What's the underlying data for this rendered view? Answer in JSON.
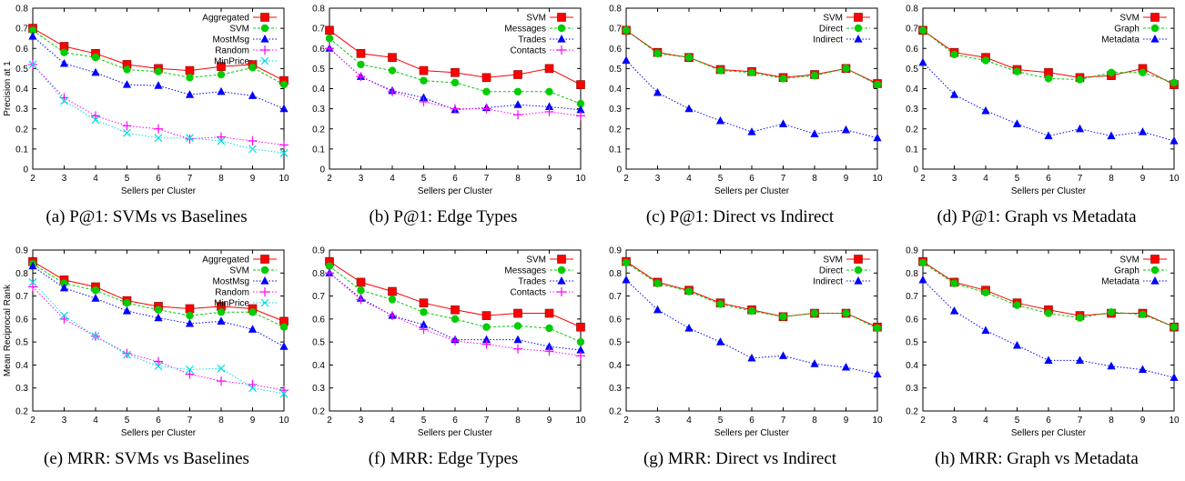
{
  "chart_data": [
    {
      "type": "line",
      "caption": "(a) P@1: SVMs vs Baselines",
      "xlabel": "Sellers per Cluster",
      "ylabel": "Precision at 1",
      "x": [
        2,
        3,
        4,
        5,
        6,
        7,
        8,
        9,
        10
      ],
      "xlim": [
        2,
        10
      ],
      "ylim": [
        0,
        0.8
      ],
      "yticks": [
        "0",
        "0.1",
        "0.2",
        "0.3",
        "0.4",
        "0.5",
        "0.6",
        "0.7",
        "0.8"
      ],
      "legend": "top-right",
      "series": [
        {
          "name": "Aggregated",
          "color": "#ff0000",
          "marker": "square",
          "values": [
            0.7,
            0.61,
            0.575,
            0.52,
            0.5,
            0.49,
            0.51,
            0.52,
            0.44
          ]
        },
        {
          "name": "SVM",
          "color": "#00cc00",
          "marker": "circle",
          "values": [
            0.69,
            0.58,
            0.555,
            0.495,
            0.485,
            0.455,
            0.47,
            0.505,
            0.42
          ]
        },
        {
          "name": "MostMsg",
          "color": "#0000ff",
          "marker": "triangle",
          "values": [
            0.66,
            0.525,
            0.48,
            0.42,
            0.415,
            0.37,
            0.385,
            0.365,
            0.3
          ]
        },
        {
          "name": "Random",
          "color": "#ff00ff",
          "marker": "plus",
          "values": [
            0.52,
            0.355,
            0.265,
            0.215,
            0.2,
            0.15,
            0.16,
            0.14,
            0.12
          ]
        },
        {
          "name": "MinPrice",
          "color": "#00dddd",
          "marker": "x",
          "values": [
            0.52,
            0.34,
            0.245,
            0.18,
            0.155,
            0.155,
            0.14,
            0.1,
            0.08
          ]
        }
      ]
    },
    {
      "type": "line",
      "caption": "(b) P@1: Edge Types",
      "xlabel": "Sellers per Cluster",
      "ylabel": "",
      "x": [
        2,
        3,
        4,
        5,
        6,
        7,
        8,
        9,
        10
      ],
      "xlim": [
        2,
        10
      ],
      "ylim": [
        0,
        0.8
      ],
      "yticks": [
        "0",
        "0.1",
        "0.2",
        "0.3",
        "0.4",
        "0.5",
        "0.6",
        "0.7",
        "0.8"
      ],
      "legend": "top-right",
      "series": [
        {
          "name": "SVM",
          "color": "#ff0000",
          "marker": "square",
          "values": [
            0.69,
            0.575,
            0.555,
            0.49,
            0.48,
            0.455,
            0.47,
            0.5,
            0.42
          ]
        },
        {
          "name": "Messages",
          "color": "#00cc00",
          "marker": "circle",
          "values": [
            0.65,
            0.52,
            0.49,
            0.44,
            0.43,
            0.385,
            0.385,
            0.385,
            0.325
          ]
        },
        {
          "name": "Trades",
          "color": "#0000ff",
          "marker": "triangle",
          "values": [
            0.6,
            0.46,
            0.39,
            0.355,
            0.295,
            0.305,
            0.32,
            0.31,
            0.295
          ]
        },
        {
          "name": "Contacts",
          "color": "#ff00ff",
          "marker": "plus",
          "values": [
            0.6,
            0.46,
            0.385,
            0.335,
            0.3,
            0.3,
            0.27,
            0.285,
            0.265
          ]
        }
      ]
    },
    {
      "type": "line",
      "caption": "(c) P@1: Direct vs Indirect",
      "xlabel": "Sellers per Cluster",
      "ylabel": "",
      "x": [
        2,
        3,
        4,
        5,
        6,
        7,
        8,
        9,
        10
      ],
      "xlim": [
        2,
        10
      ],
      "ylim": [
        0,
        0.8
      ],
      "yticks": [
        "0",
        "0.1",
        "0.2",
        "0.3",
        "0.4",
        "0.5",
        "0.6",
        "0.7",
        "0.8"
      ],
      "legend": "top-right",
      "series": [
        {
          "name": "SVM",
          "color": "#ff0000",
          "marker": "square",
          "values": [
            0.69,
            0.58,
            0.555,
            0.495,
            0.485,
            0.455,
            0.47,
            0.5,
            0.425
          ]
        },
        {
          "name": "Direct",
          "color": "#00cc00",
          "marker": "circle",
          "values": [
            0.69,
            0.575,
            0.555,
            0.49,
            0.48,
            0.45,
            0.465,
            0.5,
            0.42
          ]
        },
        {
          "name": "Indirect",
          "color": "#0000ff",
          "marker": "triangle",
          "values": [
            0.54,
            0.38,
            0.3,
            0.24,
            0.185,
            0.225,
            0.175,
            0.195,
            0.155
          ]
        }
      ]
    },
    {
      "type": "line",
      "caption": "(d) P@1: Graph vs Metadata",
      "xlabel": "Sellers per Cluster",
      "ylabel": "",
      "x": [
        2,
        3,
        4,
        5,
        6,
        7,
        8,
        9,
        10
      ],
      "xlim": [
        2,
        10
      ],
      "ylim": [
        0,
        0.8
      ],
      "yticks": [
        "0",
        "0.1",
        "0.2",
        "0.3",
        "0.4",
        "0.5",
        "0.6",
        "0.7",
        "0.8"
      ],
      "legend": "top-right",
      "series": [
        {
          "name": "SVM",
          "color": "#ff0000",
          "marker": "square",
          "values": [
            0.69,
            0.58,
            0.555,
            0.495,
            0.48,
            0.455,
            0.465,
            0.5,
            0.42
          ]
        },
        {
          "name": "Graph",
          "color": "#00cc00",
          "marker": "circle",
          "values": [
            0.69,
            0.57,
            0.54,
            0.485,
            0.45,
            0.445,
            0.48,
            0.48,
            0.43
          ]
        },
        {
          "name": "Metadata",
          "color": "#0000ff",
          "marker": "triangle",
          "values": [
            0.53,
            0.37,
            0.29,
            0.225,
            0.165,
            0.2,
            0.165,
            0.185,
            0.14
          ]
        }
      ]
    },
    {
      "type": "line",
      "caption": "(e) MRR: SVMs vs Baselines",
      "xlabel": "Sellers per Cluster",
      "ylabel": "Mean Reciprocal Rank",
      "x": [
        2,
        3,
        4,
        5,
        6,
        7,
        8,
        9,
        10
      ],
      "xlim": [
        2,
        10
      ],
      "ylim": [
        0.2,
        0.9
      ],
      "yticks": [
        "0.2",
        "0.3",
        "0.4",
        "0.5",
        "0.6",
        "0.7",
        "0.8",
        "0.9"
      ],
      "legend": "top-right",
      "series": [
        {
          "name": "Aggregated",
          "color": "#ff0000",
          "marker": "square",
          "values": [
            0.85,
            0.77,
            0.74,
            0.68,
            0.655,
            0.645,
            0.655,
            0.645,
            0.59
          ]
        },
        {
          "name": "SVM",
          "color": "#00cc00",
          "marker": "circle",
          "values": [
            0.84,
            0.755,
            0.725,
            0.67,
            0.64,
            0.615,
            0.63,
            0.63,
            0.565
          ]
        },
        {
          "name": "MostMsg",
          "color": "#0000ff",
          "marker": "triangle",
          "values": [
            0.83,
            0.735,
            0.69,
            0.635,
            0.605,
            0.58,
            0.59,
            0.555,
            0.48
          ]
        },
        {
          "name": "Random",
          "color": "#ff00ff",
          "marker": "plus",
          "values": [
            0.74,
            0.6,
            0.525,
            0.45,
            0.415,
            0.36,
            0.33,
            0.315,
            0.29
          ]
        },
        {
          "name": "MinPrice",
          "color": "#00dddd",
          "marker": "x",
          "values": [
            0.76,
            0.615,
            0.525,
            0.445,
            0.395,
            0.38,
            0.385,
            0.3,
            0.275
          ]
        }
      ]
    },
    {
      "type": "line",
      "caption": "(f) MRR: Edge Types",
      "xlabel": "Sellers per Cluster",
      "ylabel": "",
      "x": [
        2,
        3,
        4,
        5,
        6,
        7,
        8,
        9,
        10
      ],
      "xlim": [
        2,
        10
      ],
      "ylim": [
        0.2,
        0.9
      ],
      "yticks": [
        "0.2",
        "0.3",
        "0.4",
        "0.5",
        "0.6",
        "0.7",
        "0.8",
        "0.9"
      ],
      "legend": "top-right",
      "series": [
        {
          "name": "SVM",
          "color": "#ff0000",
          "marker": "square",
          "values": [
            0.85,
            0.76,
            0.72,
            0.67,
            0.64,
            0.615,
            0.625,
            0.625,
            0.565
          ]
        },
        {
          "name": "Messages",
          "color": "#00cc00",
          "marker": "circle",
          "values": [
            0.83,
            0.725,
            0.685,
            0.63,
            0.6,
            0.565,
            0.57,
            0.56,
            0.5
          ]
        },
        {
          "name": "Trades",
          "color": "#0000ff",
          "marker": "triangle",
          "values": [
            0.8,
            0.69,
            0.615,
            0.575,
            0.51,
            0.51,
            0.51,
            0.48,
            0.465
          ]
        },
        {
          "name": "Contacts",
          "color": "#ff00ff",
          "marker": "plus",
          "values": [
            0.8,
            0.685,
            0.615,
            0.555,
            0.505,
            0.49,
            0.47,
            0.46,
            0.44
          ]
        }
      ]
    },
    {
      "type": "line",
      "caption": "(g) MRR: Direct vs Indirect",
      "xlabel": "Sellers per Cluster",
      "ylabel": "",
      "x": [
        2,
        3,
        4,
        5,
        6,
        7,
        8,
        9,
        10
      ],
      "xlim": [
        2,
        10
      ],
      "ylim": [
        0.2,
        0.9
      ],
      "yticks": [
        "0.2",
        "0.3",
        "0.4",
        "0.5",
        "0.6",
        "0.7",
        "0.8",
        "0.9"
      ],
      "legend": "top-right",
      "series": [
        {
          "name": "SVM",
          "color": "#ff0000",
          "marker": "square",
          "values": [
            0.85,
            0.76,
            0.725,
            0.67,
            0.64,
            0.61,
            0.625,
            0.625,
            0.565
          ]
        },
        {
          "name": "Direct",
          "color": "#00cc00",
          "marker": "circle",
          "values": [
            0.845,
            0.755,
            0.72,
            0.665,
            0.635,
            0.61,
            0.625,
            0.625,
            0.56
          ]
        },
        {
          "name": "Indirect",
          "color": "#0000ff",
          "marker": "triangle",
          "values": [
            0.77,
            0.64,
            0.56,
            0.5,
            0.43,
            0.44,
            0.405,
            0.39,
            0.36
          ]
        }
      ]
    },
    {
      "type": "line",
      "caption": "(h) MRR: Graph vs Metadata",
      "xlabel": "Sellers per Cluster",
      "ylabel": "",
      "x": [
        2,
        3,
        4,
        5,
        6,
        7,
        8,
        9,
        10
      ],
      "xlim": [
        2,
        10
      ],
      "ylim": [
        0.2,
        0.9
      ],
      "yticks": [
        "0.2",
        "0.3",
        "0.4",
        "0.5",
        "0.6",
        "0.7",
        "0.8",
        "0.9"
      ],
      "legend": "top-right",
      "series": [
        {
          "name": "SVM",
          "color": "#ff0000",
          "marker": "square",
          "values": [
            0.85,
            0.76,
            0.725,
            0.67,
            0.64,
            0.615,
            0.625,
            0.625,
            0.565
          ]
        },
        {
          "name": "Graph",
          "color": "#00cc00",
          "marker": "circle",
          "values": [
            0.845,
            0.755,
            0.715,
            0.66,
            0.625,
            0.605,
            0.63,
            0.62,
            0.565
          ]
        },
        {
          "name": "Metadata",
          "color": "#0000ff",
          "marker": "triangle",
          "values": [
            0.77,
            0.635,
            0.55,
            0.485,
            0.42,
            0.42,
            0.395,
            0.38,
            0.345
          ]
        }
      ]
    }
  ]
}
